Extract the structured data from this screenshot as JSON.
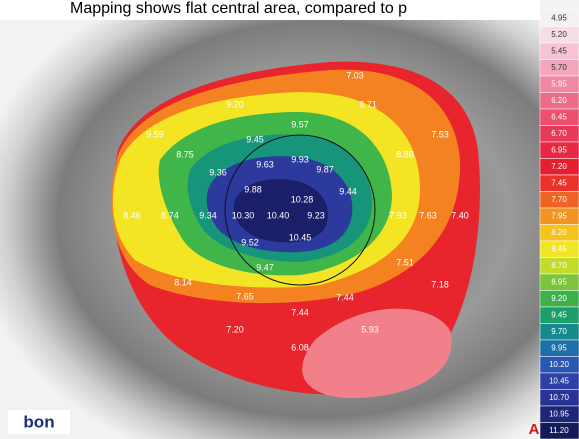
{
  "caption": "Mapping shows flat central area, compared to p",
  "scale_labels": [
    "4.95",
    "5.20",
    "5.45",
    "5.70",
    "5.95",
    "6.20",
    "6.45",
    "6.70",
    "6.95",
    "7.20",
    "7.45",
    "7.70",
    "7.95",
    "8.20",
    "8.45",
    "8.70",
    "8.95",
    "9.20",
    "9.45",
    "9.70",
    "9.95",
    "10.20",
    "10.45",
    "10.70",
    "10.95",
    "11.20"
  ],
  "map_labels": [
    "7.03",
    "9.20",
    "8.71",
    "9.59",
    "9.57",
    "7.53",
    "8.75",
    "9.45",
    "8.88",
    "9.63",
    "9.93",
    "9.87",
    "9.36",
    "9.88",
    "9.44",
    "10.28",
    "8.46",
    "8.74",
    "9.34",
    "10.30",
    "10.40",
    "9.23",
    "7.93",
    "7.63",
    "7.40",
    "10.45",
    "9.52",
    "7.51",
    "9.47",
    "8.14",
    "7.18",
    "7.65",
    "7.44",
    "7.44",
    "7.20",
    "5.93",
    "6.08"
  ],
  "logo": "bon",
  "corner_mark": "A"
}
